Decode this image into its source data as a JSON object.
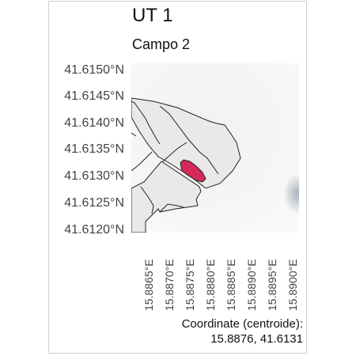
{
  "title": "UT 1",
  "subtitle": "Campo 2",
  "axes": {
    "y_ticks": [
      "41.6150°N",
      "41.6145°N",
      "41.6140°N",
      "41.6135°N",
      "41.6130°N",
      "41.6125°N",
      "41.6120°N"
    ],
    "x_ticks": [
      "15.8865°E",
      "15.8870°E",
      "15.8875°E",
      "15.8880°E",
      "15.8885°E",
      "15.8890°E",
      "15.8895°E",
      "15.8900°E"
    ]
  },
  "caption": {
    "line1": "Coordinate (centroide):",
    "line2": "15.8876, 41.6131"
  },
  "colors": {
    "highlight_fill": "#d42a5b",
    "parcel_fill": "#e8e8e8",
    "parcel_stroke": "#222222",
    "background_fill": "#f4f4f4"
  }
}
